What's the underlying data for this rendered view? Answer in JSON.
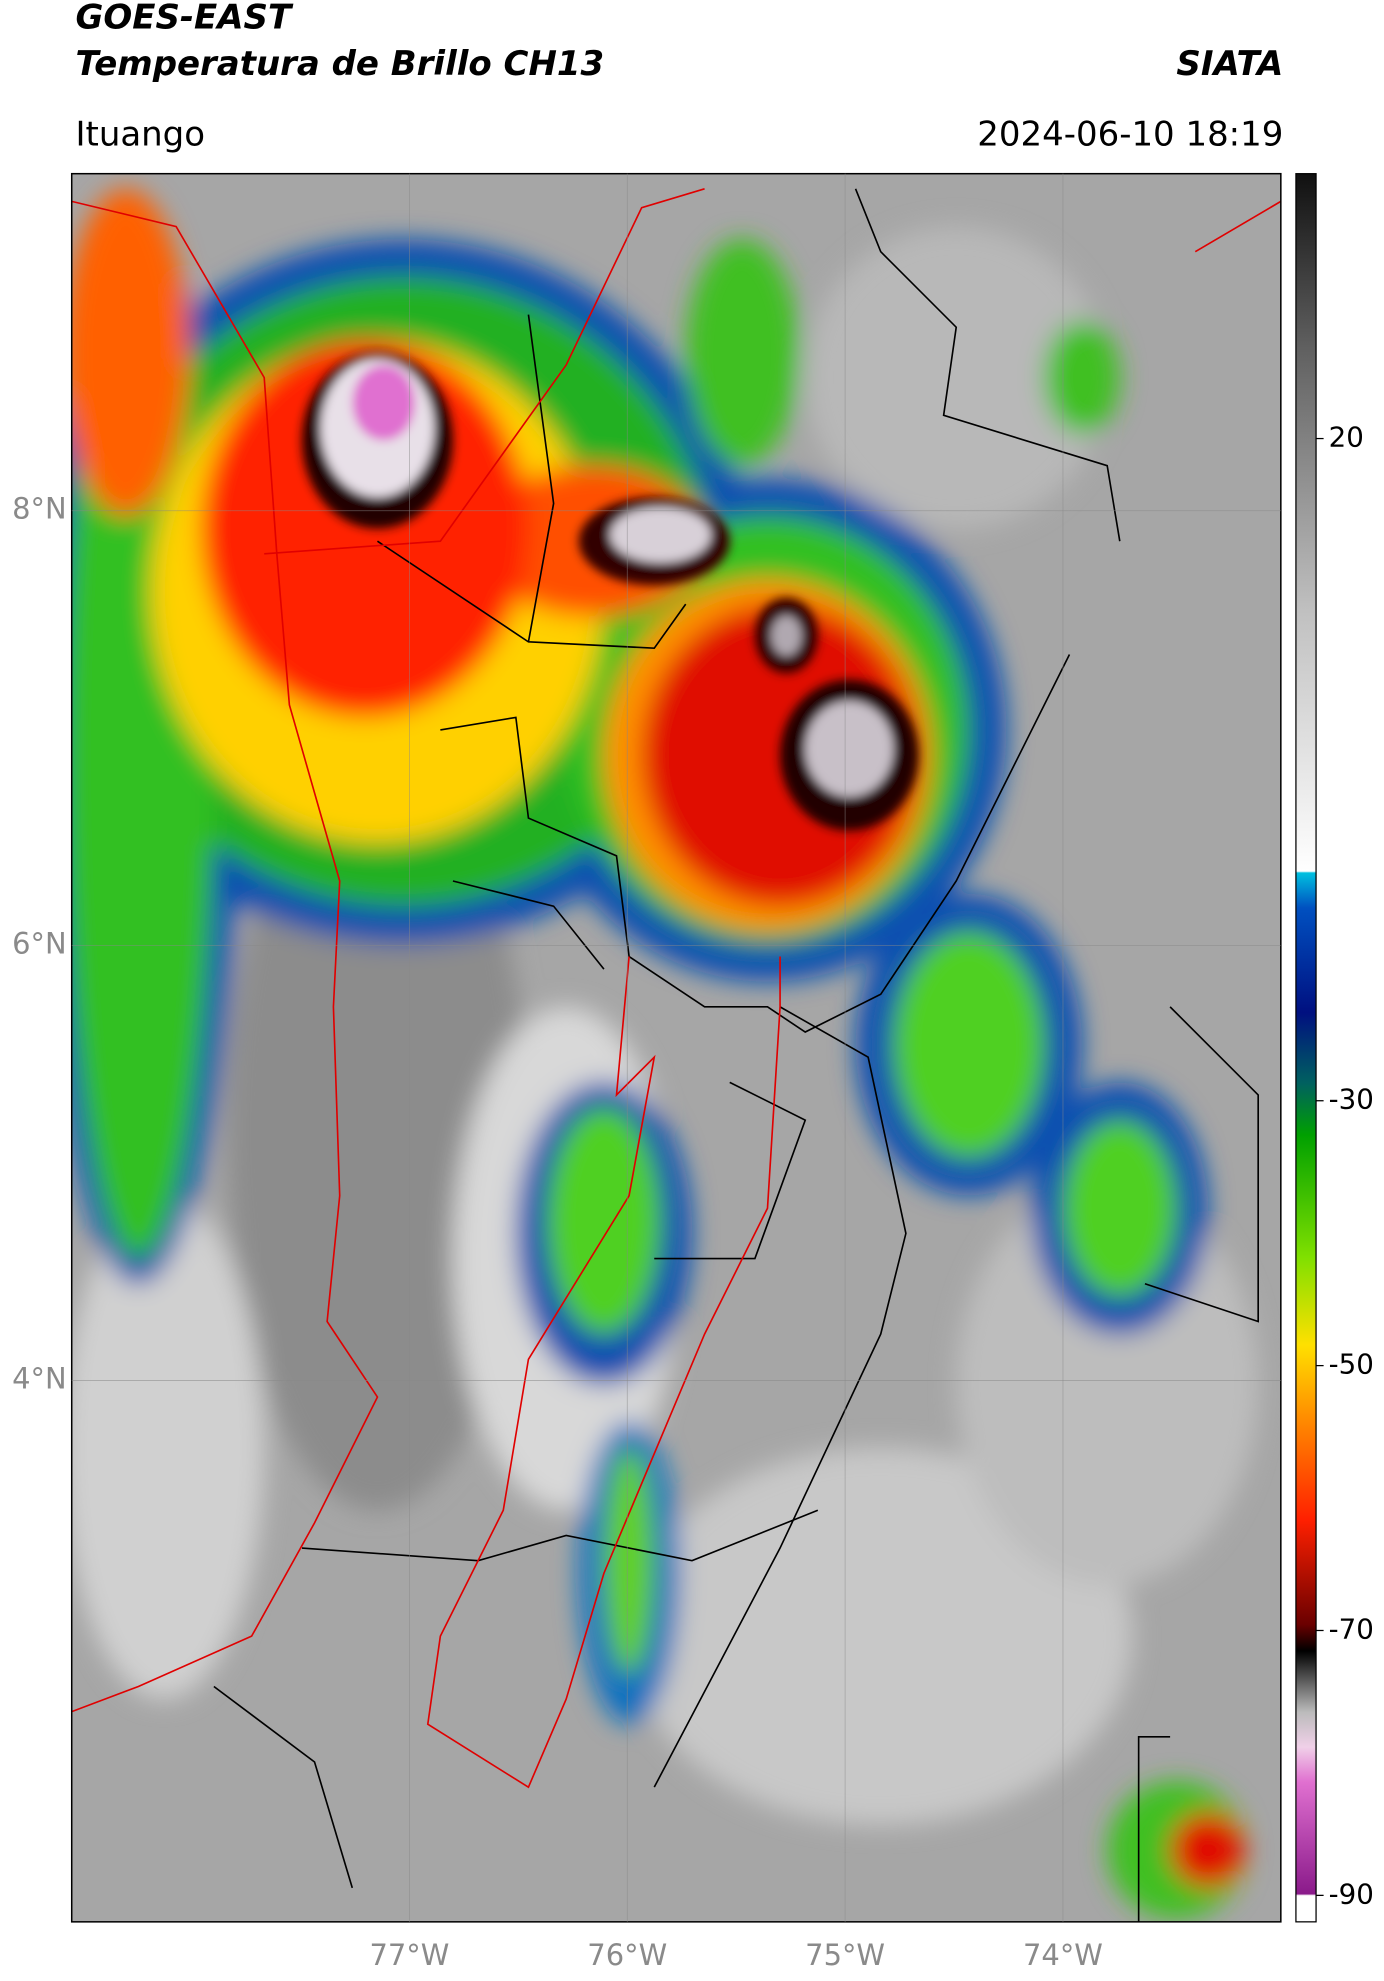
{
  "header": {
    "title": "GOES-EAST",
    "subtitle": "Temperatura de Brillo CH13",
    "brand": "SIATA",
    "location": "Ituango",
    "datetime": "2024-06-10 18:19"
  },
  "map": {
    "lat_range": [
      1.51,
      9.55
    ],
    "lon_range": [
      -78.55,
      -73.0
    ],
    "lat_ticks": [
      {
        "value": 8,
        "label": "8°N"
      },
      {
        "value": 6,
        "label": "6°N"
      },
      {
        "value": 4,
        "label": "4°N"
      }
    ],
    "lon_ticks": [
      {
        "value": -77,
        "label": "77°W"
      },
      {
        "value": -76,
        "label": "76°W"
      },
      {
        "value": -75,
        "label": "75°W"
      },
      {
        "value": -74,
        "label": "74°W"
      }
    ]
  },
  "colorbar": {
    "lim": [
      -92,
      40
    ],
    "ticks": [
      20,
      -30,
      -50,
      -70,
      -90
    ]
  }
}
